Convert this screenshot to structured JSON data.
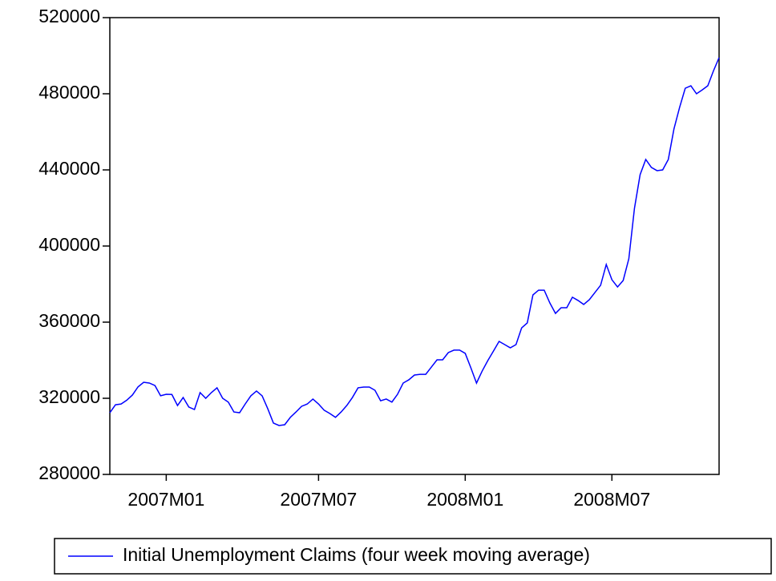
{
  "chart_data": {
    "type": "line",
    "categories": [
      null,
      null,
      null,
      null,
      null,
      null,
      null,
      null,
      null,
      null,
      "2007M01",
      null,
      null,
      null,
      null,
      null,
      null,
      null,
      null,
      null,
      null,
      null,
      null,
      null,
      null,
      null,
      null,
      null,
      null,
      null,
      null,
      null,
      null,
      null,
      null,
      null,
      null,
      "2007M07",
      null,
      null,
      null,
      null,
      null,
      null,
      null,
      null,
      null,
      null,
      null,
      null,
      null,
      null,
      null,
      null,
      null,
      null,
      null,
      null,
      null,
      null,
      null,
      null,
      null,
      "2008M01",
      null,
      null,
      null,
      null,
      null,
      null,
      null,
      null,
      null,
      null,
      null,
      null,
      null,
      null,
      null,
      null,
      null,
      null,
      null,
      null,
      null,
      null,
      null,
      null,
      null,
      "2008M07",
      null,
      null,
      null,
      null,
      null,
      null,
      null,
      null,
      null,
      null,
      null,
      null,
      null,
      null,
      null,
      null,
      null,
      null,
      null
    ],
    "series": [
      {
        "name": "Initial Unemployment Claims (four week moving average)",
        "color": "#0000ff",
        "values": [
          312400,
          316600,
          317000,
          319000,
          321700,
          326000,
          328400,
          328000,
          326700,
          321300,
          322100,
          322000,
          316200,
          320400,
          315400,
          314100,
          323000,
          320000,
          323000,
          325500,
          320000,
          318000,
          312800,
          312400,
          317000,
          321300,
          323800,
          321300,
          314500,
          307000,
          305700,
          306100,
          310000,
          312800,
          315800,
          317000,
          319600,
          317000,
          313700,
          312000,
          310000,
          312800,
          316200,
          320400,
          325500,
          325900,
          325900,
          324200,
          318700,
          319600,
          318000,
          322100,
          328000,
          329700,
          332200,
          332600,
          332600,
          336400,
          340200,
          340200,
          344000,
          345300,
          345300,
          343600,
          336000,
          328000,
          334300,
          339800,
          344800,
          349900,
          348200,
          346500,
          348200,
          357000,
          359600,
          374300,
          376800,
          376800,
          370100,
          364600,
          367600,
          367600,
          373100,
          371400,
          369300,
          371800,
          375600,
          379400,
          390300,
          382300,
          378500,
          381900,
          393300,
          419800,
          437500,
          445500,
          441300,
          439600,
          440000,
          445500,
          461500,
          472800,
          482900,
          484200,
          480000,
          482000,
          484200,
          492000,
          499000
        ]
      }
    ],
    "ylim": [
      280000,
      520000
    ],
    "yticks": [
      280000,
      320000,
      360000,
      400000,
      440000,
      480000,
      520000
    ],
    "legend": "bottom"
  }
}
